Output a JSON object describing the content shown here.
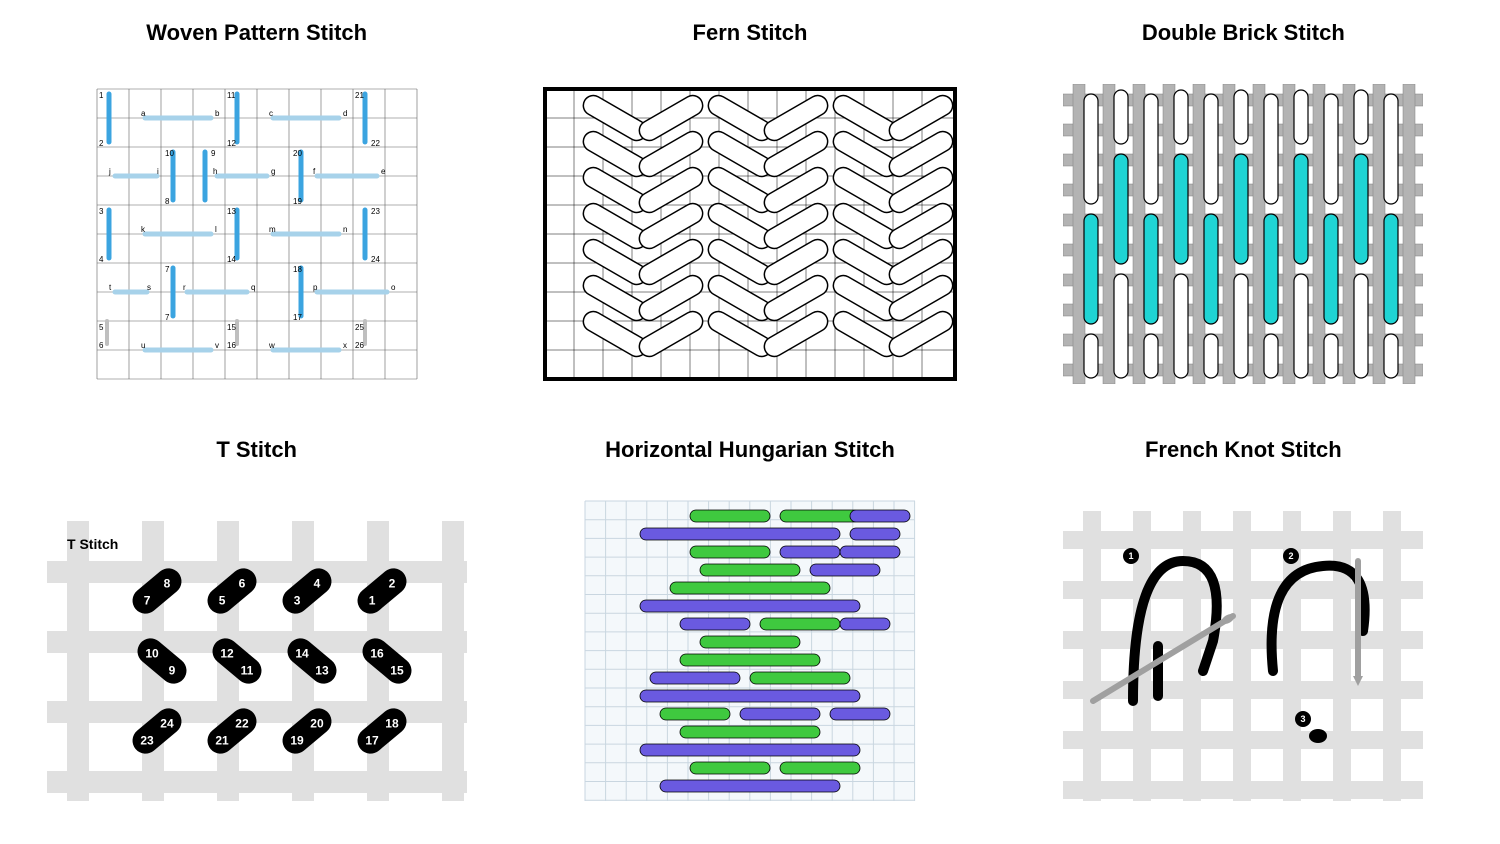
{
  "page": {
    "background_color": "#ffffff",
    "font_family": "Arial, Helvetica, sans-serif",
    "title_fontsize": 22,
    "title_weight": 700,
    "grid": {
      "cols": 3,
      "rows": 2,
      "hgap": 60,
      "vgap": 30
    }
  },
  "panels": {
    "woven": {
      "title": "Woven Pattern Stitch",
      "type": "stitch-diagram",
      "grid": {
        "cols": 10,
        "rows": 10,
        "line_color": "#606060",
        "line_width": 0.5,
        "bg": "#ffffff"
      },
      "vertical_stitch_color": "#3ba4e0",
      "horizontal_stitch_color": "#a7d2ea",
      "label_color": "#000000",
      "label_fontsize": 8,
      "numbers": [
        "1",
        "2",
        "3",
        "4",
        "5",
        "6",
        "7",
        "8",
        "9",
        "10",
        "11",
        "12",
        "13",
        "14",
        "15",
        "16",
        "17",
        "18",
        "19",
        "20",
        "21",
        "22",
        "23",
        "24",
        "25",
        "26"
      ],
      "letters": [
        "a",
        "b",
        "c",
        "d",
        "e",
        "f",
        "g",
        "h",
        "i",
        "j",
        "k",
        "l",
        "m",
        "n",
        "o",
        "p",
        "q",
        "r",
        "s",
        "t",
        "u",
        "v",
        "w",
        "x"
      ]
    },
    "fern": {
      "title": "Fern Stitch",
      "type": "stitch-diagram",
      "border_color": "#000000",
      "border_width": 3,
      "grid": {
        "cols": 14,
        "rows": 10,
        "line_color": "#000000",
        "line_width": 0.5,
        "bg": "#ffffff"
      },
      "stitch_fill": "#ffffff",
      "stitch_stroke": "#000000",
      "stitch_stroke_width": 1.5
    },
    "doublebrick": {
      "title": "Double Brick Stitch",
      "type": "stitch-diagram",
      "mesh_color": "#b3b3b3",
      "mesh_stroke": "#808080",
      "stitch_fill_white": "#ffffff",
      "stitch_fill_cyan": "#1fd4d4",
      "stitch_stroke": "#000000",
      "stitch_stroke_width": 1.2,
      "bg": "#ffffff"
    },
    "tstitch": {
      "title": "T Stitch",
      "sublabel": "T Stitch",
      "type": "stitch-diagram",
      "mesh_color": "#e0e0e0",
      "stitch_fill": "#000000",
      "number_color": "#ffffff",
      "number_fontsize": 11,
      "numbers": [
        1,
        2,
        3,
        4,
        5,
        6,
        7,
        8,
        9,
        10,
        11,
        12,
        13,
        14,
        15,
        16,
        17,
        18,
        19,
        20,
        21,
        22,
        23,
        24
      ],
      "bg": "#ffffff"
    },
    "hungarian": {
      "title": "Horizontal Hungarian Stitch",
      "type": "stitch-diagram",
      "grid": {
        "line_color": "#c9d6e0",
        "bg": "#f4f8fb"
      },
      "color_a": "#6a5ae0",
      "color_b": "#3fc93f",
      "number_color": "#0a3a00",
      "number_fontsize": 8,
      "stitch_stroke": "#000000"
    },
    "frenchknot": {
      "title": "French Knot Stitch",
      "type": "stitch-diagram",
      "mesh_color": "#e0e0e0",
      "thread_color": "#000000",
      "needle_color": "#a0a0a0",
      "number_bg": "#000000",
      "number_color": "#ffffff",
      "numbers": [
        1,
        2,
        3
      ],
      "bg": "#ffffff"
    }
  }
}
